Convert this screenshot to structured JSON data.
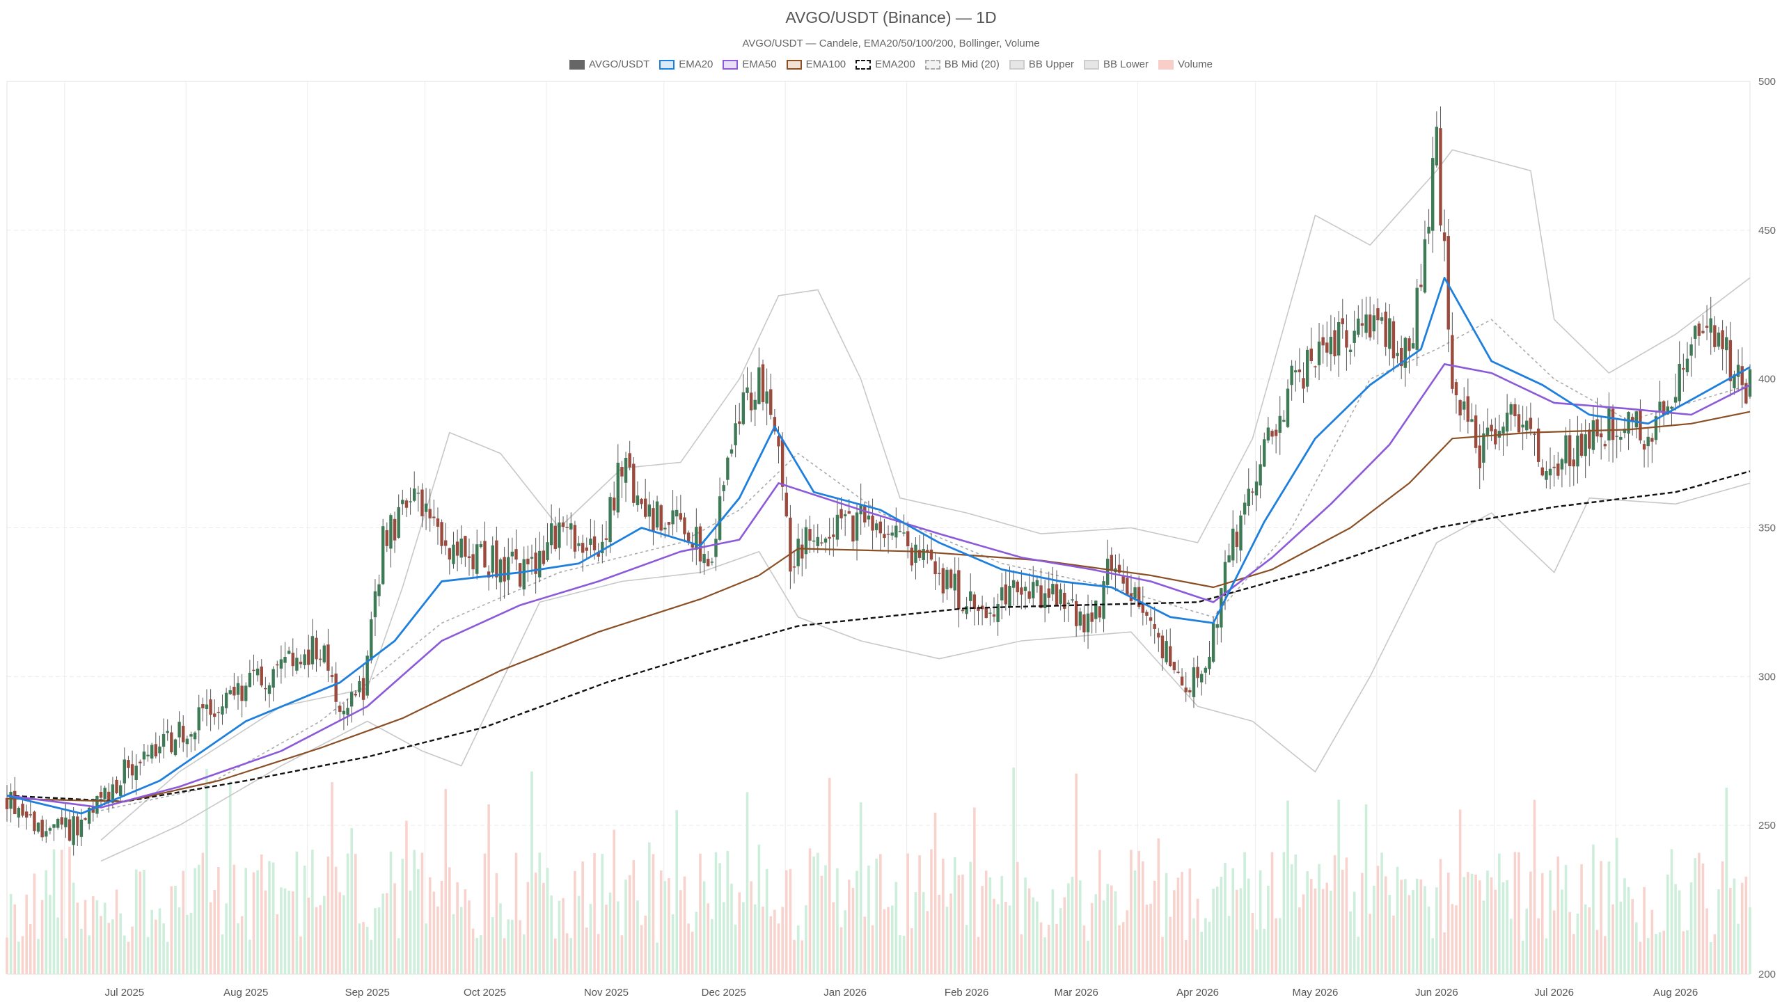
{
  "title": "AVGO/USDT (Binance) — 1D",
  "subtitle": "AVGO/USDT — Candele, EMA20/50/100/200, Bollinger, Volume",
  "legend": [
    {
      "label": "AVGO/USDT",
      "fill": "#666666",
      "stroke": "#666666",
      "dash": false
    },
    {
      "label": "EMA20",
      "fill": "#dbeaf8",
      "stroke": "#1e7fdc",
      "dash": false
    },
    {
      "label": "EMA50",
      "fill": "#eadff8",
      "stroke": "#8c5ad9",
      "dash": false
    },
    {
      "label": "EMA100",
      "fill": "#f1e2d3",
      "stroke": "#8a4f24",
      "dash": false
    },
    {
      "label": "EMA200",
      "fill": "#ffffff",
      "stroke": "#111111",
      "dash": true
    },
    {
      "label": "BB Mid (20)",
      "fill": "#f2f2f2",
      "stroke": "#aaaaaa",
      "dash": true
    },
    {
      "label": "BB Upper",
      "fill": "#e6e6e6",
      "stroke": "#cccccc",
      "dash": false
    },
    {
      "label": "BB Lower",
      "fill": "#e6e6e6",
      "stroke": "#cccccc",
      "dash": false
    },
    {
      "label": "Volume",
      "fill": "#f8cfc8",
      "stroke": "#f8cfc8",
      "dash": false
    }
  ],
  "colors": {
    "up": "#3d7a55",
    "down": "#9b4a3e",
    "ema20": "#1e7fdc",
    "ema50": "#8c5ad9",
    "ema100": "#8a4f24",
    "ema200": "#111111",
    "bb": "#c8c8c8",
    "bb_mid": "#aaaaaa",
    "vol_up": "#cdeedb",
    "vol_down": "#f8d3cd",
    "grid": "#ececec"
  },
  "chart_data": {
    "type": "candlestick",
    "x_range": [
      "2025-06-01",
      "2026-08-20"
    ],
    "ylim": [
      200,
      500
    ],
    "y_ticks": [
      "500",
      "450",
      "400",
      "350",
      "300",
      "250",
      "200"
    ],
    "x_ticks": [
      {
        "date": "2025-07-01",
        "label": "Jul 2025"
      },
      {
        "date": "2025-08-01",
        "label": "Aug 2025"
      },
      {
        "date": "2025-09-01",
        "label": "Sep 2025"
      },
      {
        "date": "2025-10-01",
        "label": "Oct 2025"
      },
      {
        "date": "2025-11-01",
        "label": "Nov 2025"
      },
      {
        "date": "2025-12-01",
        "label": "Dec 2025"
      },
      {
        "date": "2026-01-01",
        "label": "Jan 2026"
      },
      {
        "date": "2026-02-01",
        "label": "Feb 2026"
      },
      {
        "date": "2026-03-01",
        "label": "Mar 2026"
      },
      {
        "date": "2026-04-01",
        "label": "Apr 2026"
      },
      {
        "date": "2026-05-01",
        "label": "May 2026"
      },
      {
        "date": "2026-06-01",
        "label": "Jun 2026"
      },
      {
        "date": "2026-07-01",
        "label": "Jul 2026"
      },
      {
        "date": "2026-08-01",
        "label": "Aug 2026"
      }
    ],
    "close_path": [
      [
        "2025-06-01",
        260
      ],
      [
        "2025-06-08",
        250
      ],
      [
        "2025-06-15",
        248
      ],
      [
        "2025-06-22",
        252
      ],
      [
        "2025-07-01",
        268
      ],
      [
        "2025-07-10",
        275
      ],
      [
        "2025-07-20",
        285
      ],
      [
        "2025-07-31",
        296
      ],
      [
        "2025-08-10",
        302
      ],
      [
        "2025-08-20",
        310
      ],
      [
        "2025-08-25",
        292
      ],
      [
        "2025-08-31",
        296
      ],
      [
        "2025-09-05",
        345
      ],
      [
        "2025-09-12",
        360
      ],
      [
        "2025-09-20",
        345
      ],
      [
        "2025-09-28",
        340
      ],
      [
        "2025-10-05",
        338
      ],
      [
        "2025-10-12",
        335
      ],
      [
        "2025-10-20",
        350
      ],
      [
        "2025-10-30",
        340
      ],
      [
        "2025-11-05",
        372
      ],
      [
        "2025-11-10",
        355
      ],
      [
        "2025-11-20",
        352
      ],
      [
        "2025-11-28",
        340
      ],
      [
        "2025-12-03",
        382
      ],
      [
        "2025-12-10",
        398
      ],
      [
        "2025-12-15",
        378
      ],
      [
        "2025-12-18",
        340
      ],
      [
        "2025-12-25",
        348
      ],
      [
        "2026-01-05",
        352
      ],
      [
        "2026-01-15",
        345
      ],
      [
        "2026-01-25",
        335
      ],
      [
        "2026-02-05",
        320
      ],
      [
        "2026-02-15",
        330
      ],
      [
        "2026-02-25",
        325
      ],
      [
        "2026-03-05",
        315
      ],
      [
        "2026-03-10",
        340
      ],
      [
        "2026-03-18",
        320
      ],
      [
        "2026-03-25",
        305
      ],
      [
        "2026-03-30",
        295
      ],
      [
        "2026-04-05",
        315
      ],
      [
        "2026-04-10",
        345
      ],
      [
        "2026-04-18",
        375
      ],
      [
        "2026-04-25",
        400
      ],
      [
        "2026-05-05",
        410
      ],
      [
        "2026-05-15",
        420
      ],
      [
        "2026-05-25",
        408
      ],
      [
        "2026-06-01",
        478
      ],
      [
        "2026-06-05",
        400
      ],
      [
        "2026-06-12",
        375
      ],
      [
        "2026-06-20",
        392
      ],
      [
        "2026-06-28",
        372
      ],
      [
        "2026-07-05",
        375
      ],
      [
        "2026-07-15",
        385
      ],
      [
        "2026-07-25",
        382
      ],
      [
        "2026-08-01",
        395
      ],
      [
        "2026-08-08",
        420
      ],
      [
        "2026-08-15",
        405
      ],
      [
        "2026-08-20",
        397
      ]
    ],
    "ema20": [
      [
        "2025-06-01",
        260
      ],
      [
        "2025-06-20",
        254
      ],
      [
        "2025-07-10",
        265
      ],
      [
        "2025-08-01",
        285
      ],
      [
        "2025-08-25",
        298
      ],
      [
        "2025-09-08",
        312
      ],
      [
        "2025-09-20",
        332
      ],
      [
        "2025-10-10",
        335
      ],
      [
        "2025-10-25",
        338
      ],
      [
        "2025-11-10",
        350
      ],
      [
        "2025-11-25",
        344
      ],
      [
        "2025-12-05",
        360
      ],
      [
        "2025-12-14",
        384
      ],
      [
        "2025-12-24",
        362
      ],
      [
        "2026-01-10",
        356
      ],
      [
        "2026-01-25",
        345
      ],
      [
        "2026-02-10",
        336
      ],
      [
        "2026-02-25",
        332
      ],
      [
        "2026-03-10",
        330
      ],
      [
        "2026-03-25",
        320
      ],
      [
        "2026-04-05",
        318
      ],
      [
        "2026-04-18",
        352
      ],
      [
        "2026-05-01",
        380
      ],
      [
        "2026-05-15",
        398
      ],
      [
        "2026-05-28",
        410
      ],
      [
        "2026-06-03",
        434
      ],
      [
        "2026-06-15",
        406
      ],
      [
        "2026-06-28",
        398
      ],
      [
        "2026-07-10",
        388
      ],
      [
        "2026-07-25",
        385
      ],
      [
        "2026-08-05",
        393
      ],
      [
        "2026-08-20",
        404
      ]
    ],
    "ema50": [
      [
        "2025-06-01",
        260
      ],
      [
        "2025-06-25",
        256
      ],
      [
        "2025-07-15",
        263
      ],
      [
        "2025-08-10",
        275
      ],
      [
        "2025-09-01",
        290
      ],
      [
        "2025-09-20",
        312
      ],
      [
        "2025-10-10",
        324
      ],
      [
        "2025-10-30",
        332
      ],
      [
        "2025-11-20",
        342
      ],
      [
        "2025-12-05",
        346
      ],
      [
        "2025-12-15",
        365
      ],
      [
        "2026-01-05",
        356
      ],
      [
        "2026-01-25",
        348
      ],
      [
        "2026-02-15",
        340
      ],
      [
        "2026-03-05",
        336
      ],
      [
        "2026-03-20",
        332
      ],
      [
        "2026-04-05",
        325
      ],
      [
        "2026-04-20",
        340
      ],
      [
        "2026-05-05",
        358
      ],
      [
        "2026-05-20",
        378
      ],
      [
        "2026-06-03",
        405
      ],
      [
        "2026-06-15",
        402
      ],
      [
        "2026-07-01",
        392
      ],
      [
        "2026-07-20",
        390
      ],
      [
        "2026-08-05",
        388
      ],
      [
        "2026-08-20",
        398
      ]
    ],
    "ema100": [
      [
        "2025-06-01",
        259
      ],
      [
        "2025-07-01",
        258
      ],
      [
        "2025-07-25",
        265
      ],
      [
        "2025-08-20",
        276
      ],
      [
        "2025-09-10",
        286
      ],
      [
        "2025-10-05",
        302
      ],
      [
        "2025-10-30",
        315
      ],
      [
        "2025-11-25",
        326
      ],
      [
        "2025-12-10",
        334
      ],
      [
        "2025-12-20",
        343
      ],
      [
        "2026-01-20",
        342
      ],
      [
        "2026-02-20",
        339
      ],
      [
        "2026-03-20",
        334
      ],
      [
        "2026-04-05",
        330
      ],
      [
        "2026-04-20",
        336
      ],
      [
        "2026-05-10",
        350
      ],
      [
        "2026-05-25",
        365
      ],
      [
        "2026-06-05",
        380
      ],
      [
        "2026-06-25",
        382
      ],
      [
        "2026-07-20",
        383
      ],
      [
        "2026-08-05",
        385
      ],
      [
        "2026-08-20",
        389
      ]
    ],
    "ema200": [
      [
        "2025-06-01",
        260
      ],
      [
        "2025-07-01",
        258
      ],
      [
        "2025-08-01",
        265
      ],
      [
        "2025-09-01",
        273
      ],
      [
        "2025-10-01",
        283
      ],
      [
        "2025-11-01",
        298
      ],
      [
        "2025-12-01",
        310
      ],
      [
        "2025-12-20",
        317
      ],
      [
        "2026-01-10",
        320
      ],
      [
        "2026-02-01",
        323
      ],
      [
        "2026-03-01",
        324
      ],
      [
        "2026-04-01",
        325
      ],
      [
        "2026-05-01",
        336
      ],
      [
        "2026-06-01",
        350
      ],
      [
        "2026-07-01",
        357
      ],
      [
        "2026-08-01",
        362
      ],
      [
        "2026-08-20",
        369
      ]
    ],
    "bb_mid": [
      [
        "2025-06-25",
        255
      ],
      [
        "2025-07-20",
        262
      ],
      [
        "2025-08-20",
        285
      ],
      [
        "2025-09-20",
        318
      ],
      [
        "2025-10-20",
        335
      ],
      [
        "2025-11-20",
        345
      ],
      [
        "2025-12-05",
        356
      ],
      [
        "2025-12-20",
        375
      ],
      [
        "2026-01-10",
        355
      ],
      [
        "2026-02-10",
        338
      ],
      [
        "2026-03-10",
        330
      ],
      [
        "2026-04-05",
        320
      ],
      [
        "2026-04-25",
        350
      ],
      [
        "2026-05-15",
        400
      ],
      [
        "2026-06-01",
        410
      ],
      [
        "2026-06-15",
        420
      ],
      [
        "2026-07-01",
        400
      ],
      [
        "2026-07-20",
        386
      ],
      [
        "2026-08-20",
        398
      ]
    ],
    "bb_upper": [
      [
        "2025-06-25",
        245
      ],
      [
        "2025-07-15",
        268
      ],
      [
        "2025-08-10",
        290
      ],
      [
        "2025-09-01",
        296
      ],
      [
        "2025-09-10",
        330
      ],
      [
        "2025-09-22",
        382
      ],
      [
        "2025-10-05",
        375
      ],
      [
        "2025-10-20",
        350
      ],
      [
        "2025-11-05",
        370
      ],
      [
        "2025-11-20",
        372
      ],
      [
        "2025-12-05",
        400
      ],
      [
        "2025-12-15",
        428
      ],
      [
        "2025-12-25",
        430
      ],
      [
        "2026-01-05",
        400
      ],
      [
        "2026-01-15",
        360
      ],
      [
        "2026-02-01",
        355
      ],
      [
        "2026-02-20",
        348
      ],
      [
        "2026-03-15",
        350
      ],
      [
        "2026-04-01",
        345
      ],
      [
        "2026-04-15",
        380
      ],
      [
        "2026-05-01",
        455
      ],
      [
        "2026-05-15",
        445
      ],
      [
        "2026-06-01",
        470
      ],
      [
        "2026-06-05",
        477
      ],
      [
        "2026-06-25",
        470
      ],
      [
        "2026-07-01",
        420
      ],
      [
        "2026-07-15",
        402
      ],
      [
        "2026-08-01",
        415
      ],
      [
        "2026-08-20",
        434
      ]
    ],
    "bb_lower": [
      [
        "2025-06-25",
        238
      ],
      [
        "2025-07-15",
        250
      ],
      [
        "2025-08-10",
        270
      ],
      [
        "2025-09-01",
        285
      ],
      [
        "2025-09-15",
        275
      ],
      [
        "2025-09-25",
        270
      ],
      [
        "2025-10-15",
        325
      ],
      [
        "2025-11-05",
        332
      ],
      [
        "2025-11-25",
        335
      ],
      [
        "2025-12-10",
        342
      ],
      [
        "2025-12-20",
        320
      ],
      [
        "2026-01-05",
        312
      ],
      [
        "2026-01-25",
        306
      ],
      [
        "2026-02-15",
        312
      ],
      [
        "2026-03-15",
        315
      ],
      [
        "2026-04-01",
        290
      ],
      [
        "2026-04-15",
        285
      ],
      [
        "2026-05-01",
        268
      ],
      [
        "2026-05-15",
        300
      ],
      [
        "2026-06-01",
        345
      ],
      [
        "2026-06-15",
        355
      ],
      [
        "2026-07-01",
        335
      ],
      [
        "2026-07-10",
        360
      ],
      [
        "2026-08-01",
        358
      ],
      [
        "2026-08-20",
        365
      ]
    ]
  }
}
